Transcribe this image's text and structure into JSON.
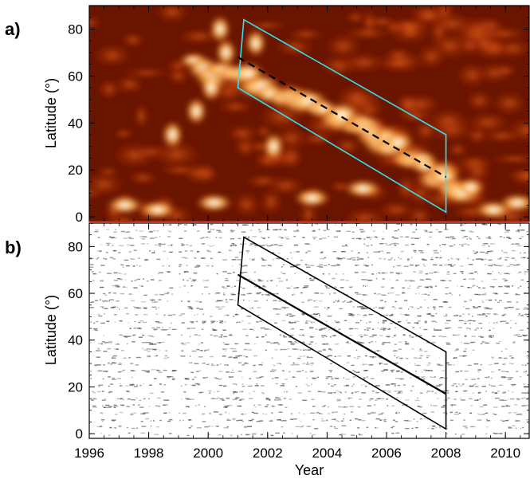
{
  "chart_data": [
    {
      "type": "heatmap",
      "panel_label": "a)",
      "ylabel": "Latitude (°)",
      "xlabel": "",
      "xlim": [
        1996,
        2010.8
      ],
      "ylim": [
        -2,
        90
      ],
      "yticks": [
        0,
        20,
        40,
        60,
        80
      ],
      "colormap": "hot (dark red to white)",
      "outline_color": "#33e0ee",
      "outline": [
        [
          2001.0,
          55
        ],
        [
          2001.2,
          84
        ],
        [
          2008.0,
          35
        ],
        [
          2008.0,
          2
        ]
      ],
      "trend_line": {
        "style": "dashed",
        "color": "#000000",
        "points": [
          [
            2001.0,
            68
          ],
          [
            2008.0,
            17
          ]
        ]
      },
      "bright_band": [
        [
          1999.5,
          64
        ],
        [
          2001.0,
          60
        ],
        [
          2002.5,
          52
        ],
        [
          2004.0,
          44
        ],
        [
          2005.0,
          40
        ],
        [
          2006.0,
          32
        ],
        [
          2007.0,
          24
        ],
        [
          2008.0,
          16
        ],
        [
          2009.0,
          9
        ]
      ]
    },
    {
      "type": "scatter",
      "panel_label": "b)",
      "ylabel": "Latitude (°)",
      "xlabel": "Year",
      "xlim": [
        1996,
        2010.8
      ],
      "ylim": [
        -2,
        90
      ],
      "yticks": [
        0,
        20,
        40,
        60,
        80
      ],
      "xticks": [
        1996,
        1998,
        2000,
        2002,
        2004,
        2006,
        2008,
        2010
      ],
      "xtick_labels": [
        "1996",
        "1998",
        "2000",
        "2002",
        "2004",
        "2006",
        "2008",
        "2010"
      ],
      "marker_color": "#444444",
      "data_gap": [
        1998.8,
        1999.0
      ],
      "outline_color": "#000000",
      "outline": [
        [
          2001.0,
          55
        ],
        [
          2001.2,
          84
        ],
        [
          2008.0,
          35
        ],
        [
          2008.0,
          2
        ]
      ],
      "trend_line": {
        "style": "solid",
        "color": "#000000",
        "points": [
          [
            2001.0,
            68
          ],
          [
            2008.0,
            17
          ]
        ]
      }
    }
  ]
}
